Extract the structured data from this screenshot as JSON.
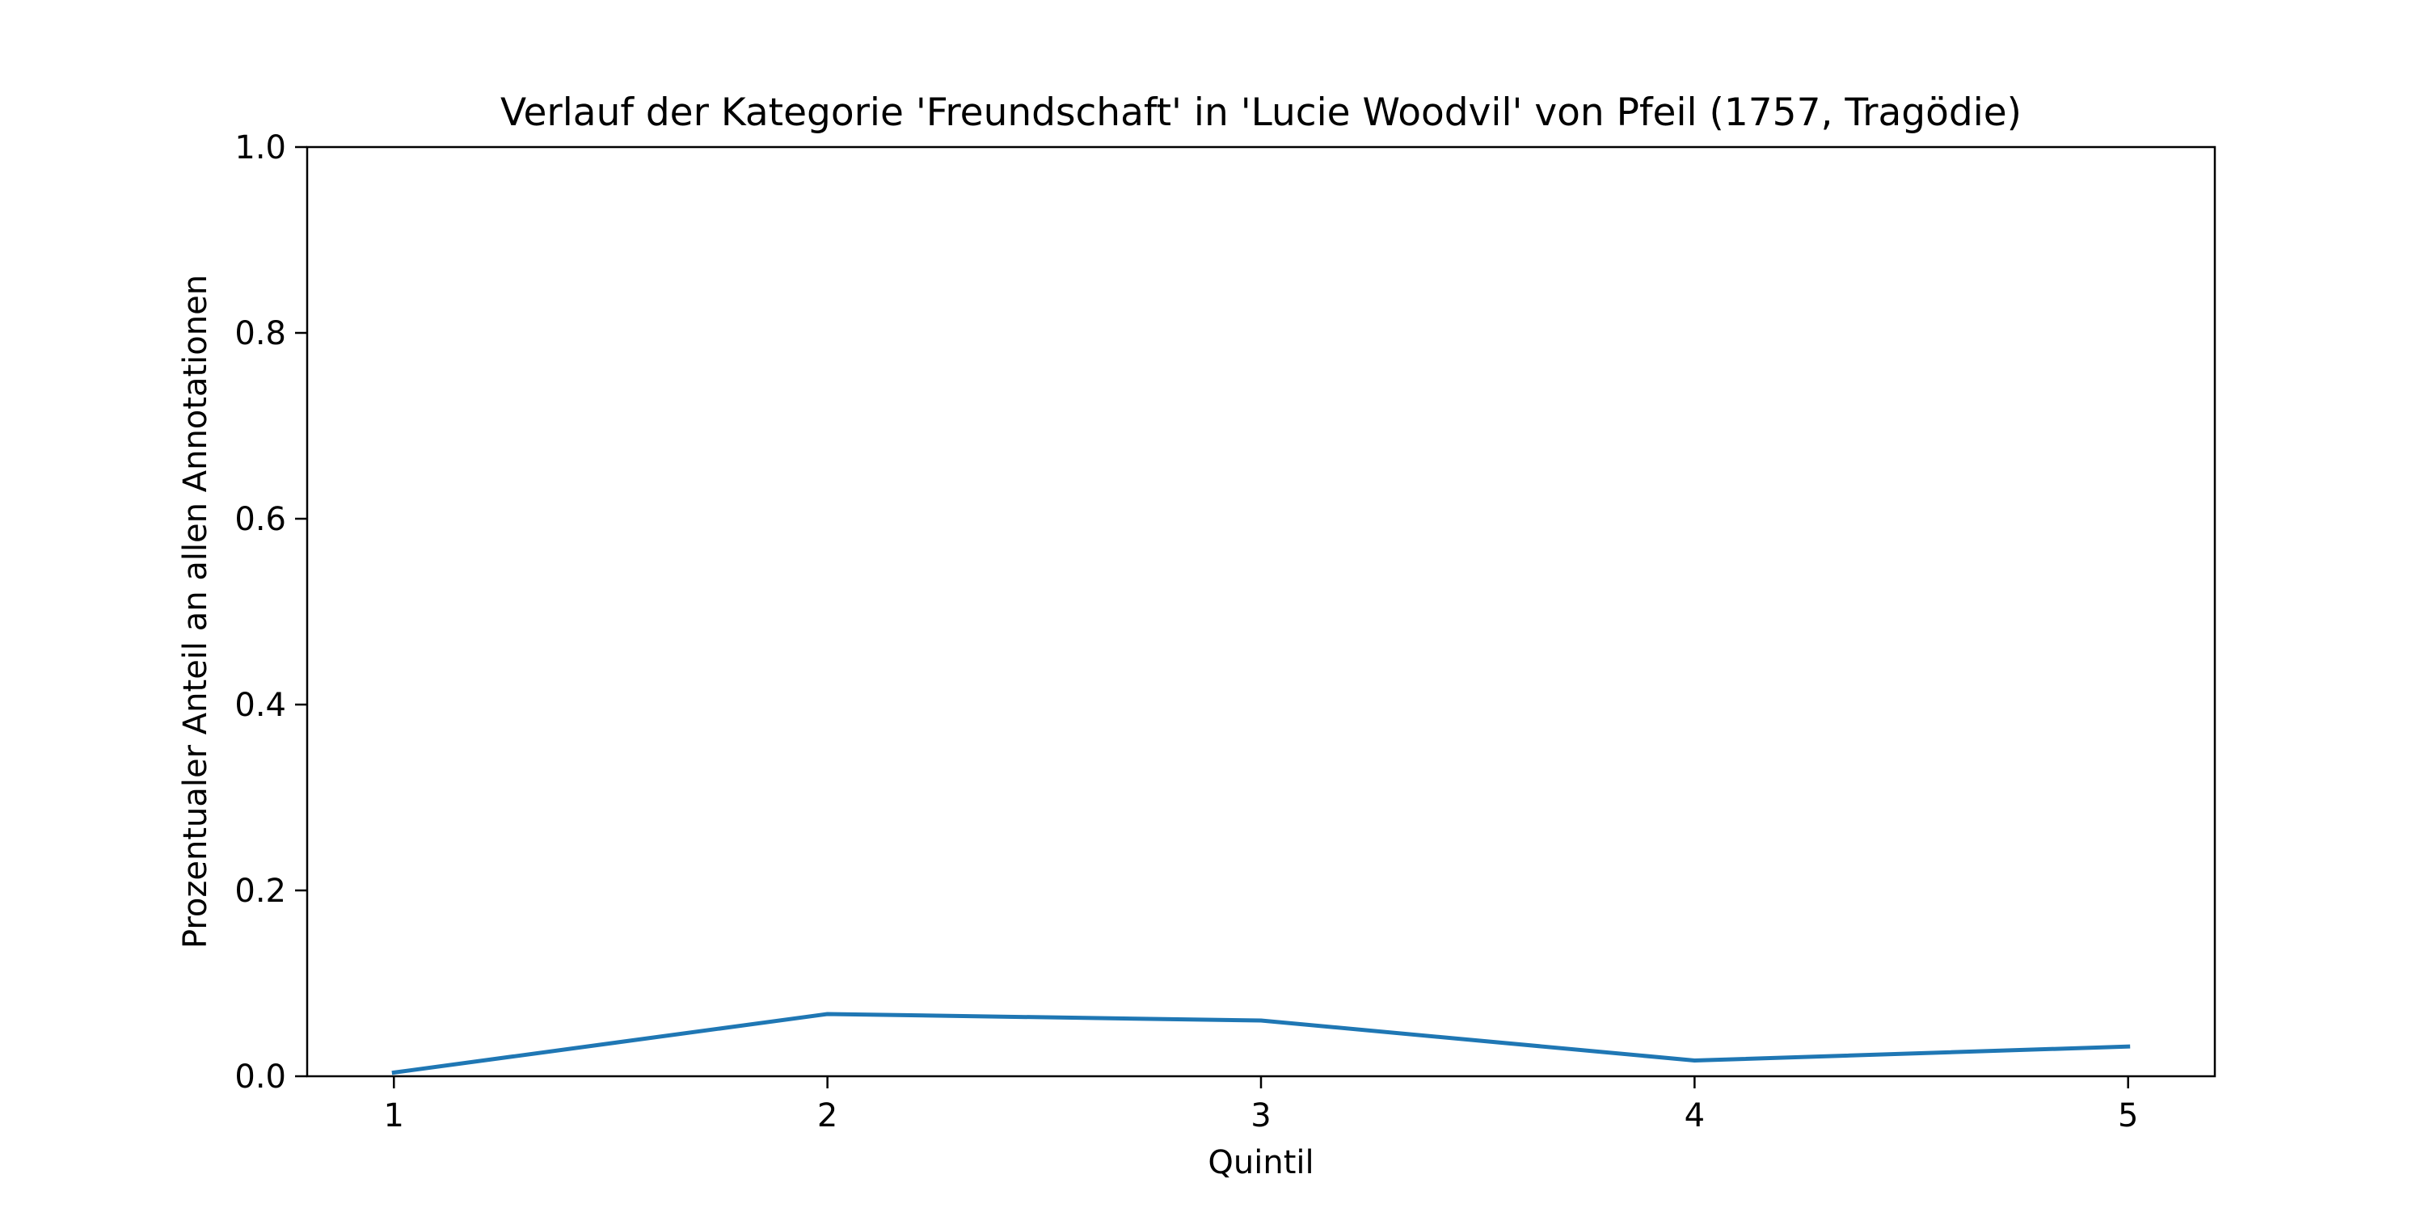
{
  "chart_data": {
    "type": "line",
    "title": "Verlauf der Kategorie 'Freundschaft' in 'Lucie Woodvil' von Pfeil (1757, Tragödie)",
    "xlabel": "Quintil",
    "ylabel": "Prozentualer Anteil an allen Annotationen",
    "x": [
      1,
      2,
      3,
      4,
      5
    ],
    "x_tick_labels": [
      "1",
      "2",
      "3",
      "4",
      "5"
    ],
    "xlim": [
      0.8,
      5.2
    ],
    "ylim": [
      0.0,
      1.0
    ],
    "y_ticks": [
      0.0,
      0.2,
      0.4,
      0.6,
      0.8,
      1.0
    ],
    "y_tick_labels": [
      "0.0",
      "0.2",
      "0.4",
      "0.6",
      "0.8",
      "1.0"
    ],
    "grid": false,
    "series": [
      {
        "values": [
          0.004,
          0.067,
          0.06,
          0.017,
          0.032
        ],
        "color": "#1f77b4"
      }
    ]
  }
}
